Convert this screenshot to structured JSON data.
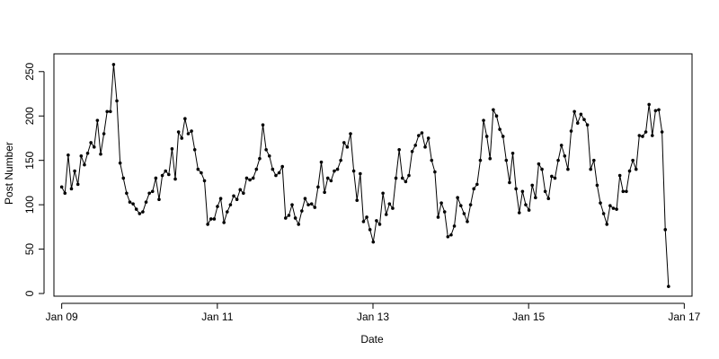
{
  "chart_data": {
    "type": "line",
    "title": "",
    "xlabel": "Date",
    "ylabel": "Post Number",
    "xlim": [
      -0.1,
      8.1
    ],
    "ylim": [
      -3,
      270
    ],
    "x_ticks": [
      {
        "value": 0,
        "label": "Jan 09"
      },
      {
        "value": 2,
        "label": "Jan 11"
      },
      {
        "value": 4,
        "label": "Jan 13"
      },
      {
        "value": 6,
        "label": "Jan 15"
      },
      {
        "value": 8,
        "label": "Jan 17"
      }
    ],
    "y_ticks": [
      0,
      50,
      100,
      150,
      200,
      250
    ],
    "series": [
      {
        "x_start": 0.0,
        "x_step": 0.0417,
        "values": [
          120,
          113,
          156,
          118,
          138,
          123,
          155,
          145,
          158,
          170,
          165,
          195,
          157,
          180,
          205,
          205,
          258,
          217,
          147,
          130,
          113,
          103,
          101,
          95,
          90,
          92,
          103,
          113,
          115,
          130,
          106,
          133,
          138,
          134,
          163,
          129,
          182,
          175,
          197,
          180,
          183,
          162,
          140,
          136,
          127,
          78,
          84,
          84,
          98,
          107,
          80,
          92,
          100,
          110,
          106,
          117,
          113,
          130,
          128,
          130,
          140,
          152,
          190,
          162,
          155,
          140,
          133,
          136,
          143,
          85,
          88,
          100,
          85,
          78,
          93,
          107,
          100,
          101,
          97,
          120,
          148,
          114,
          130,
          127,
          138,
          140,
          150,
          170,
          165,
          180,
          138,
          105,
          135,
          81,
          86,
          72,
          58,
          82,
          78,
          113,
          89,
          101,
          96,
          130,
          162,
          130,
          126,
          133,
          160,
          167,
          178,
          181,
          165,
          175,
          150,
          137,
          86,
          102,
          92,
          64,
          66,
          76,
          108,
          99,
          90,
          81,
          100,
          118,
          123,
          150,
          195,
          177,
          152,
          207,
          200,
          185,
          177,
          150,
          125,
          158,
          118,
          91,
          115,
          100,
          94,
          122,
          108,
          146,
          140,
          115,
          107,
          132,
          130,
          150,
          167,
          155,
          140,
          183,
          205,
          192,
          202,
          196,
          190,
          140,
          150,
          122,
          102,
          90,
          78,
          99,
          96,
          95,
          133,
          115,
          115,
          138,
          150,
          140,
          178,
          177,
          182,
          213,
          178,
          206,
          207,
          182,
          72,
          8
        ]
      }
    ]
  }
}
